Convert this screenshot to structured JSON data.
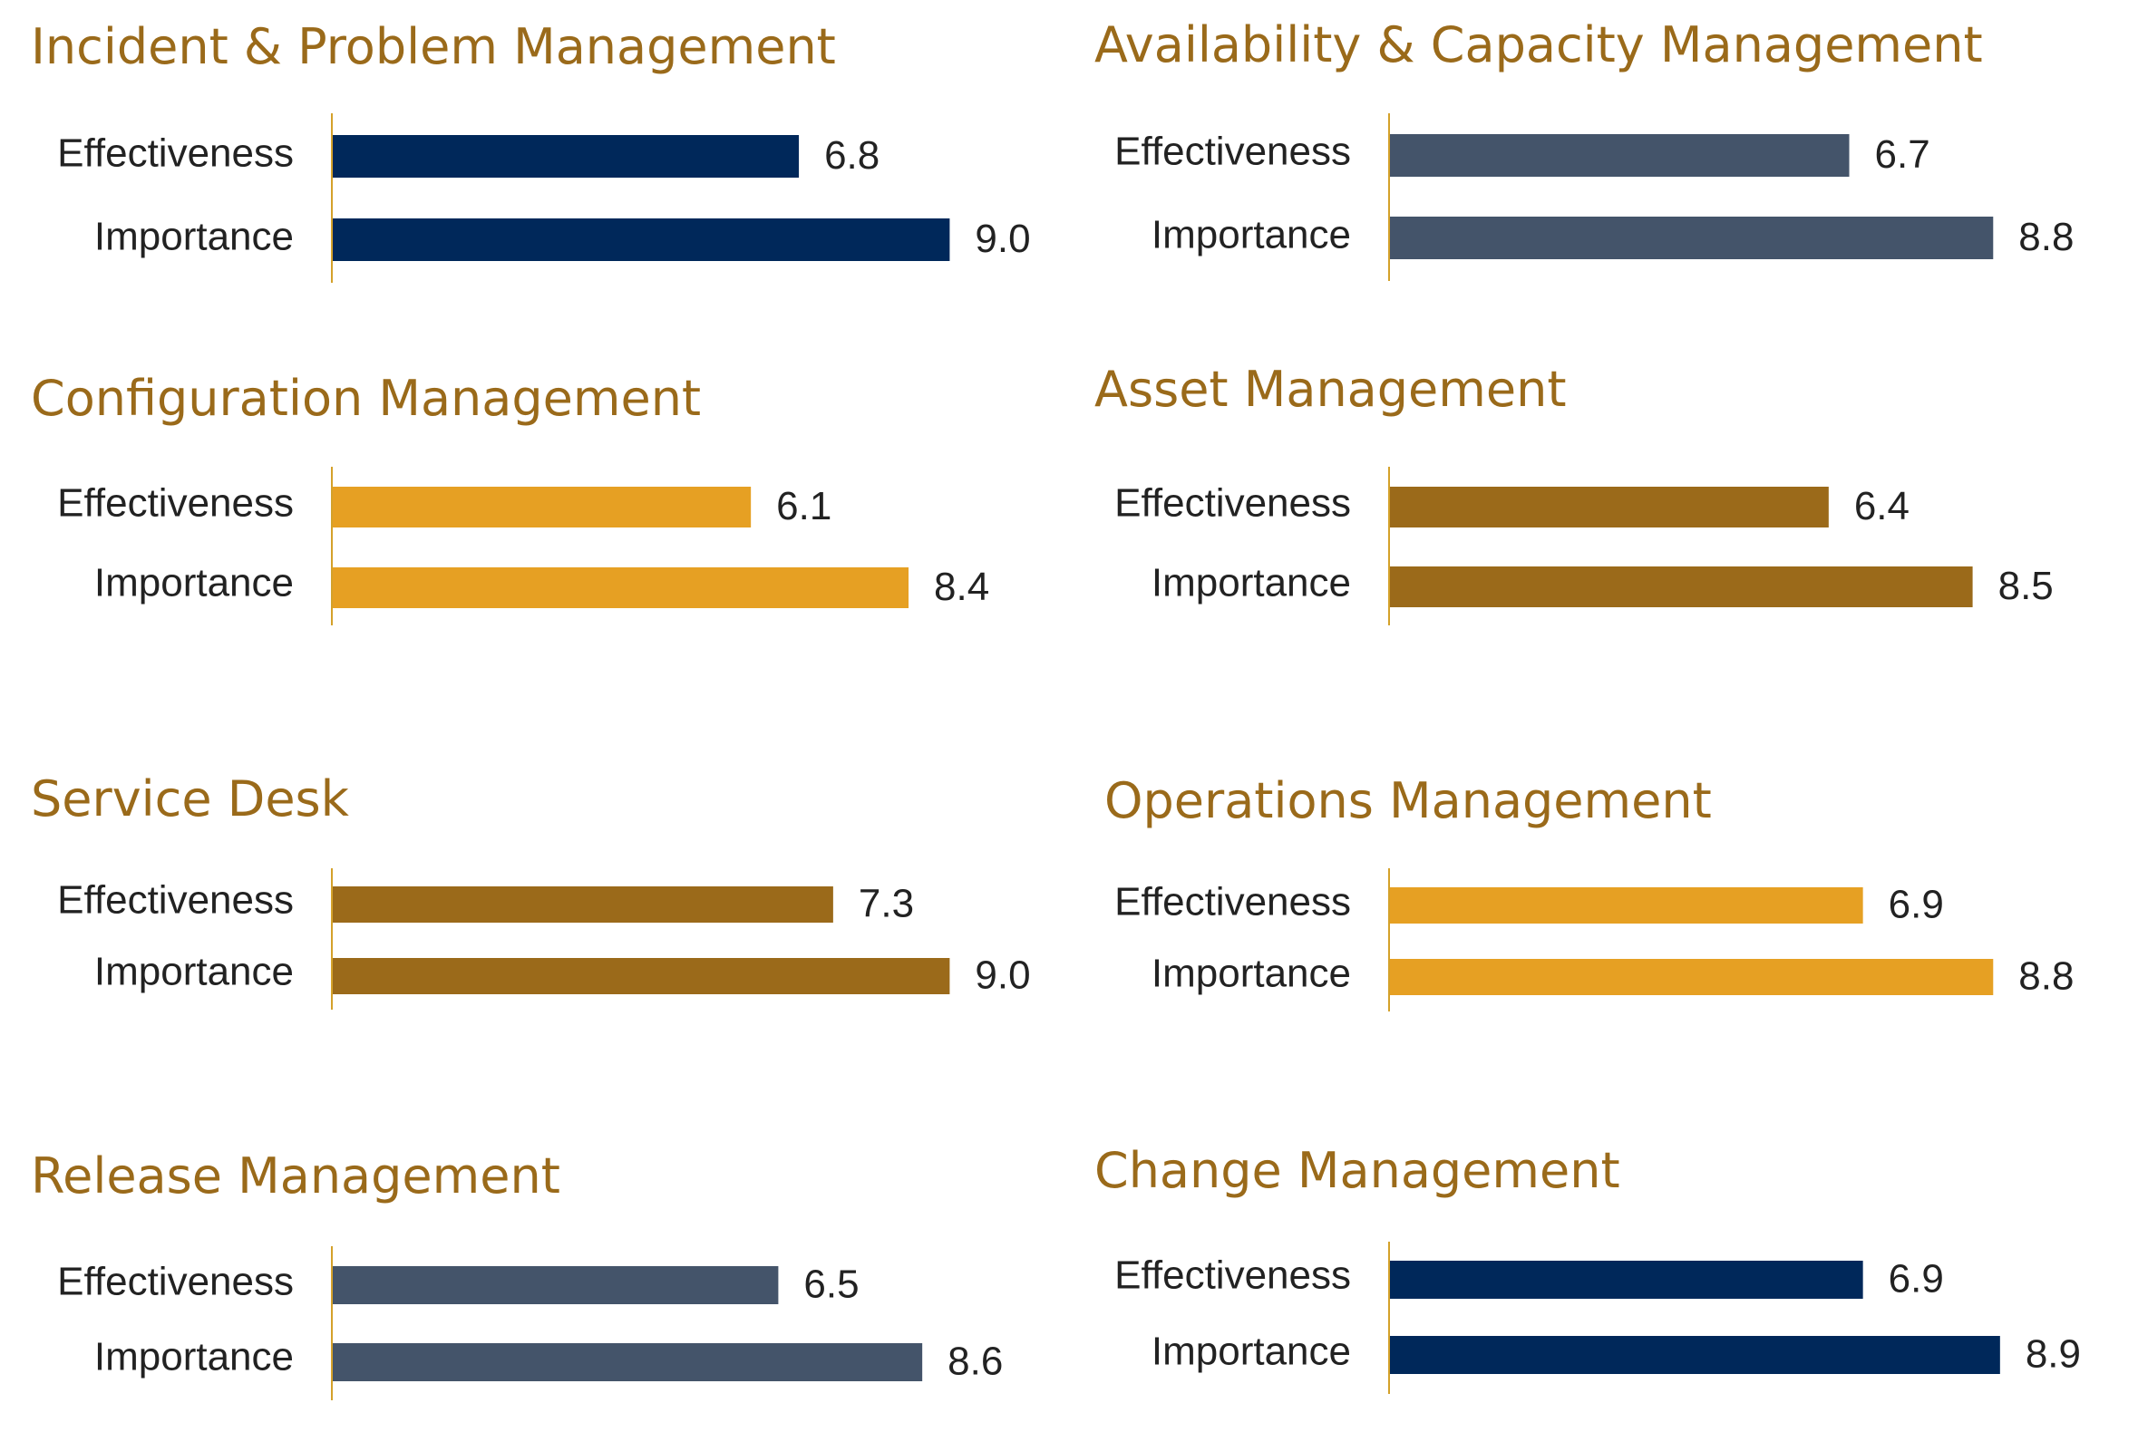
{
  "colors": {
    "title": "#9a6a1a",
    "axis": "#d4a12a",
    "text": "#222222",
    "navy": "#00285a",
    "slate": "#44546a",
    "gold": "#e6a023",
    "brown": "#9b6a1a"
  },
  "chart_data": [
    {
      "type": "bar",
      "title": "Incident & Problem Management",
      "categories": [
        "Effectiveness",
        "Importance"
      ],
      "values": [
        6.8,
        9.0
      ],
      "value_labels": [
        "6.8",
        "9.0"
      ],
      "color": "#00285a",
      "xlim": [
        0,
        10
      ],
      "orientation": "horizontal"
    },
    {
      "type": "bar",
      "title": "Availability & Capacity Management",
      "categories": [
        "Effectiveness",
        "Importance"
      ],
      "values": [
        6.7,
        8.8
      ],
      "value_labels": [
        "6.7",
        "8.8"
      ],
      "color": "#44546a",
      "xlim": [
        0,
        10
      ],
      "orientation": "horizontal"
    },
    {
      "type": "bar",
      "title": "Configuration Management",
      "categories": [
        "Effectiveness",
        "Importance"
      ],
      "values": [
        6.1,
        8.4
      ],
      "value_labels": [
        "6.1",
        "8.4"
      ],
      "color": "#e6a023",
      "xlim": [
        0,
        10
      ],
      "orientation": "horizontal"
    },
    {
      "type": "bar",
      "title": "Asset Management",
      "categories": [
        "Effectiveness",
        "Importance"
      ],
      "values": [
        6.4,
        8.5
      ],
      "value_labels": [
        "6.4",
        "8.5"
      ],
      "color": "#9b6a1a",
      "xlim": [
        0,
        10
      ],
      "orientation": "horizontal"
    },
    {
      "type": "bar",
      "title": "Service Desk",
      "categories": [
        "Effectiveness",
        "Importance"
      ],
      "values": [
        7.3,
        9.0
      ],
      "value_labels": [
        "7.3",
        "9.0"
      ],
      "color": "#9b6a1a",
      "xlim": [
        0,
        10
      ],
      "orientation": "horizontal"
    },
    {
      "type": "bar",
      "title": "Operations Management",
      "categories": [
        "Effectiveness",
        "Importance"
      ],
      "values": [
        6.9,
        8.8
      ],
      "value_labels": [
        "6.9",
        "8.8"
      ],
      "color": "#e6a023",
      "xlim": [
        0,
        10
      ],
      "orientation": "horizontal"
    },
    {
      "type": "bar",
      "title": "Release Management",
      "categories": [
        "Effectiveness",
        "Importance"
      ],
      "values": [
        6.5,
        8.6
      ],
      "value_labels": [
        "6.5",
        "8.6"
      ],
      "color": "#44546a",
      "xlim": [
        0,
        10
      ],
      "orientation": "horizontal"
    },
    {
      "type": "bar",
      "title": "Change Management",
      "categories": [
        "Effectiveness",
        "Importance"
      ],
      "values": [
        6.9,
        8.9
      ],
      "value_labels": [
        "6.9",
        "8.9"
      ],
      "color": "#00285a",
      "xlim": [
        0,
        10
      ],
      "orientation": "horizontal"
    }
  ]
}
